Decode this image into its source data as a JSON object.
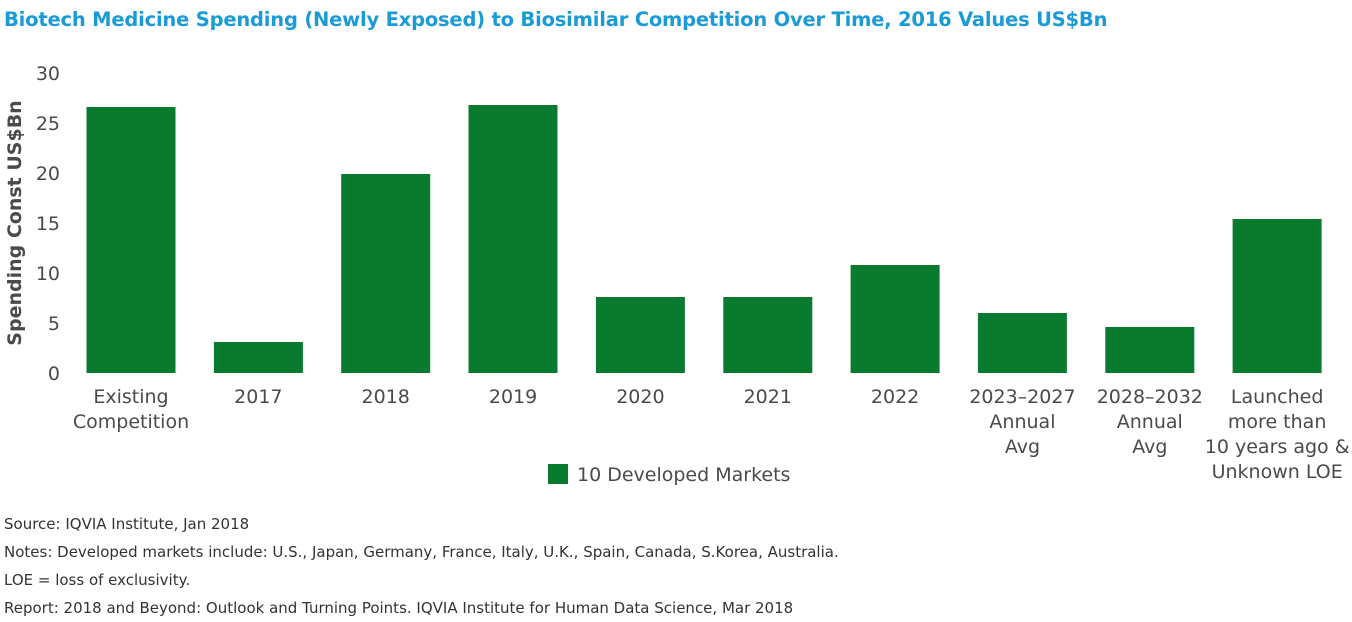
{
  "title": "Biotech Medicine Spending (Newly Exposed) to Biosimilar Competition Over Time, 2016 Values US$Bn",
  "colors": {
    "bar": "#0a7a2e",
    "title": "#1a9bd7"
  },
  "chart_data": {
    "type": "bar",
    "title": "Biotech Medicine Spending (Newly Exposed) to Biosimilar Competition Over Time, 2016 Values US$Bn",
    "xlabel": "",
    "ylabel": "Spending Const US$Bn",
    "ylim": [
      0,
      30
    ],
    "yticks": [
      0,
      5,
      10,
      15,
      20,
      25,
      30
    ],
    "grid": false,
    "legend_position": "bottom-center",
    "categories": [
      [
        "Existing",
        "Competition"
      ],
      [
        "2017"
      ],
      [
        "2018"
      ],
      [
        "2019"
      ],
      [
        "2020"
      ],
      [
        "2021"
      ],
      [
        "2022"
      ],
      [
        "2023–2027",
        "Annual",
        "Avg"
      ],
      [
        "2028–2032",
        "Annual",
        "Avg"
      ],
      [
        "Launched",
        "more than",
        "10 years ago &",
        "Unknown LOE"
      ]
    ],
    "series": [
      {
        "name": "10 Developed Markets",
        "values": [
          26.6,
          3.1,
          19.9,
          26.8,
          7.6,
          7.6,
          10.8,
          6.0,
          4.6,
          15.4
        ]
      }
    ]
  },
  "footer": {
    "source": "Source: IQVIA Institute, Jan 2018",
    "notes": "Notes: Developed markets include: U.S., Japan, Germany, France, Italy, U.K., Spain, Canada, S.Korea, Australia.",
    "loe": "LOE = loss of exclusivity.",
    "report": "Report: 2018 and Beyond: Outlook and Turning Points. IQVIA Institute for Human Data Science, Mar 2018"
  }
}
